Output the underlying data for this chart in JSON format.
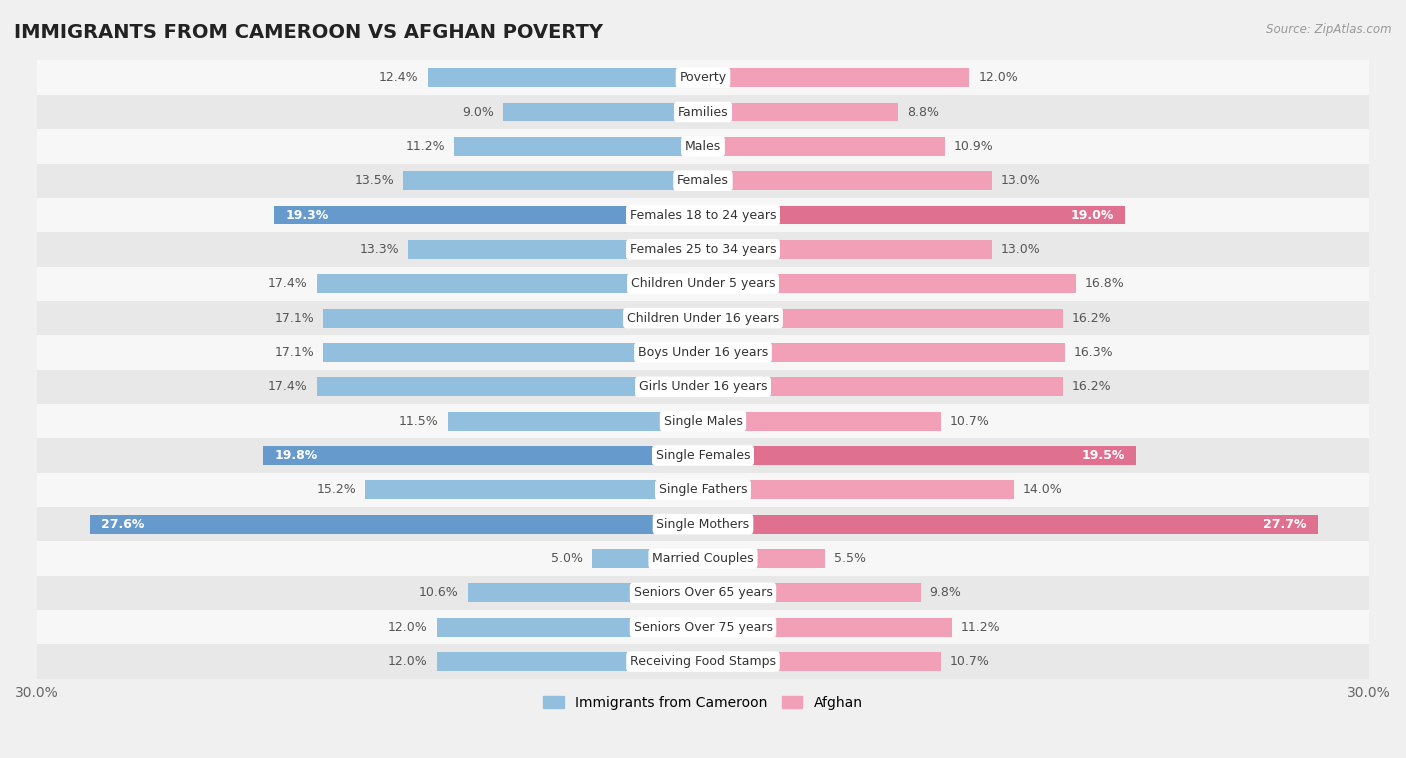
{
  "title": "IMMIGRANTS FROM CAMEROON VS AFGHAN POVERTY",
  "source": "Source: ZipAtlas.com",
  "categories": [
    "Poverty",
    "Families",
    "Males",
    "Females",
    "Females 18 to 24 years",
    "Females 25 to 34 years",
    "Children Under 5 years",
    "Children Under 16 years",
    "Boys Under 16 years",
    "Girls Under 16 years",
    "Single Males",
    "Single Females",
    "Single Fathers",
    "Single Mothers",
    "Married Couples",
    "Seniors Over 65 years",
    "Seniors Over 75 years",
    "Receiving Food Stamps"
  ],
  "cameroon_values": [
    12.4,
    9.0,
    11.2,
    13.5,
    19.3,
    13.3,
    17.4,
    17.1,
    17.1,
    17.4,
    11.5,
    19.8,
    15.2,
    27.6,
    5.0,
    10.6,
    12.0,
    12.0
  ],
  "afghan_values": [
    12.0,
    8.8,
    10.9,
    13.0,
    19.0,
    13.0,
    16.8,
    16.2,
    16.3,
    16.2,
    10.7,
    19.5,
    14.0,
    27.7,
    5.5,
    9.8,
    11.2,
    10.7
  ],
  "cameroon_color": "#92bfde",
  "afghan_color": "#f2a0b8",
  "cameroon_highlight_color": "#6699cc",
  "afghan_highlight_color": "#e07090",
  "highlight_rows": [
    4,
    11,
    13
  ],
  "xlim": 30.0,
  "background_color": "#f0f0f0",
  "row_bg_even": "#f7f7f7",
  "row_bg_odd": "#e8e8e8",
  "legend_cameroon": "Immigrants from Cameroon",
  "legend_afghan": "Afghan",
  "label_fontsize": 9,
  "value_fontsize": 9,
  "title_fontsize": 14
}
